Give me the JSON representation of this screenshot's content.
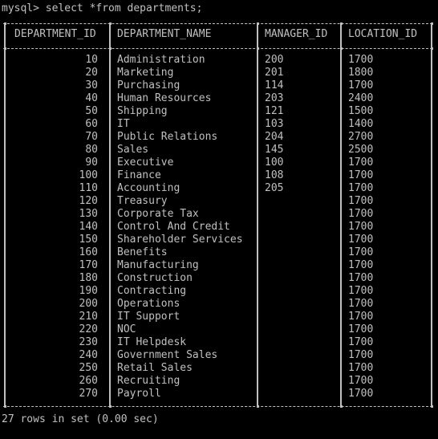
{
  "command_line": "mysql> select *from departments;",
  "columns": [
    "DEPARTMENT_ID",
    "DEPARTMENT_NAME",
    "MANAGER_ID",
    "LOCATION_ID"
  ],
  "rows": [
    [
      "10",
      "Administration",
      "200",
      "1700"
    ],
    [
      "20",
      "Marketing",
      "201",
      "1800"
    ],
    [
      "30",
      "Purchasing",
      "114",
      "1700"
    ],
    [
      "40",
      "Human Resources",
      "203",
      "2400"
    ],
    [
      "50",
      "Shipping",
      "121",
      "1500"
    ],
    [
      "60",
      "IT",
      "103",
      "1400"
    ],
    [
      "70",
      "Public Relations",
      "204",
      "2700"
    ],
    [
      "80",
      "Sales",
      "145",
      "2500"
    ],
    [
      "90",
      "Executive",
      "100",
      "1700"
    ],
    [
      "100",
      "Finance",
      "108",
      "1700"
    ],
    [
      "110",
      "Accounting",
      "205",
      "1700"
    ],
    [
      "120",
      "Treasury",
      "",
      "1700"
    ],
    [
      "130",
      "Corporate Tax",
      "",
      "1700"
    ],
    [
      "140",
      "Control And Credit",
      "",
      "1700"
    ],
    [
      "150",
      "Shareholder Services",
      "",
      "1700"
    ],
    [
      "160",
      "Benefits",
      "",
      "1700"
    ],
    [
      "170",
      "Manufacturing",
      "",
      "1700"
    ],
    [
      "180",
      "Construction",
      "",
      "1700"
    ],
    [
      "190",
      "Contracting",
      "",
      "1700"
    ],
    [
      "200",
      "Operations",
      "",
      "1700"
    ],
    [
      "210",
      "IT Support",
      "",
      "1700"
    ],
    [
      "220",
      "NOC",
      "",
      "1700"
    ],
    [
      "230",
      "IT Helpdesk",
      "",
      "1700"
    ],
    [
      "240",
      "Government Sales",
      "",
      "1700"
    ],
    [
      "250",
      "Retail Sales",
      "",
      "1700"
    ],
    [
      "260",
      "Recruiting",
      "",
      "1700"
    ],
    [
      "270",
      "Payroll",
      "",
      "1700"
    ]
  ],
  "result_line": "27 rows in set (0.00 sec)",
  "colors": {
    "background": "#000000",
    "text": "#c0c0c0"
  }
}
